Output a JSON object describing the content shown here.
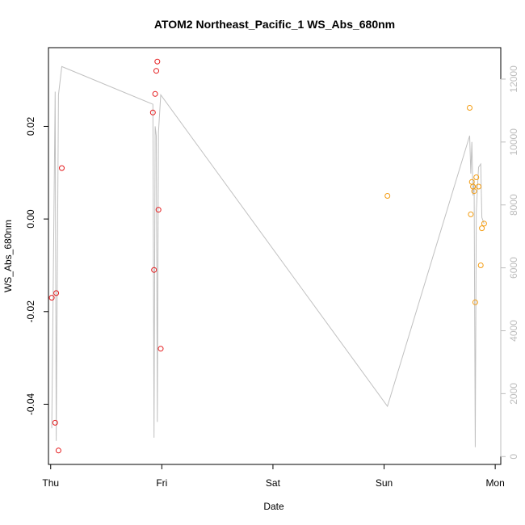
{
  "chart_data": {
    "type": "scatter",
    "title": "ATOM2 Northeast_Pacific_1 WS_Abs_680nm",
    "xlabel": "Date",
    "ylabel": "WS_Abs_680nm",
    "x_ticks": [
      "Thu",
      "Fri",
      "Sat",
      "Sun",
      "Mon"
    ],
    "xlim": [
      -0.02,
      4.05
    ],
    "ylim": [
      -0.053,
      0.037
    ],
    "y_ticks": [
      -0.04,
      -0.02,
      0.0,
      0.02
    ],
    "y_tick_labels": [
      "-0.04",
      "-0.02",
      "0.00",
      "0.02"
    ],
    "y2lim": [
      -250,
      13000
    ],
    "y2_ticks": [
      0,
      2000,
      4000,
      6000,
      8000,
      10000,
      12000
    ],
    "y2_tick_labels": [
      "0",
      "2000",
      "4000",
      "6000",
      "8000",
      "10000",
      "12000"
    ],
    "grid": false,
    "colors": {
      "series_red": "#e41a1c",
      "series_orange": "#f39c12",
      "depth_line": "#c0c0c0",
      "right_axis": "#bdbdbd"
    },
    "series": [
      {
        "color": "#e41a1c",
        "points": [
          [
            0.01,
            -0.017
          ],
          [
            0.04,
            -0.044
          ],
          [
            0.05,
            -0.016
          ],
          [
            0.07,
            -0.05
          ],
          [
            0.1,
            0.011
          ],
          [
            0.92,
            0.023
          ],
          [
            0.93,
            -0.011
          ],
          [
            0.94,
            0.027
          ],
          [
            0.95,
            0.032
          ],
          [
            0.96,
            0.034
          ],
          [
            0.97,
            0.002
          ],
          [
            0.99,
            -0.028
          ]
        ]
      },
      {
        "color": "#f39c12",
        "points": [
          [
            3.03,
            0.005
          ],
          [
            3.77,
            0.024
          ],
          [
            3.78,
            0.001
          ],
          [
            3.79,
            0.008
          ],
          [
            3.8,
            0.007
          ],
          [
            3.81,
            0.006
          ],
          [
            3.82,
            -0.018
          ],
          [
            3.83,
            0.009
          ],
          [
            3.85,
            0.007
          ],
          [
            3.87,
            -0.01
          ],
          [
            3.88,
            -0.002
          ],
          [
            3.9,
            -0.001
          ]
        ]
      }
    ],
    "depth_line": {
      "x": [
        0.01,
        0.04,
        0.05,
        0.07,
        0.1,
        0.92,
        0.93,
        0.94,
        0.95,
        0.96,
        0.97,
        0.99,
        3.03,
        3.77,
        3.78,
        3.79,
        3.8,
        3.81,
        3.82,
        3.83,
        3.85,
        3.87,
        3.88,
        3.9
      ],
      "y": [
        900,
        11600,
        500,
        11500,
        12400,
        11200,
        600,
        10500,
        10200,
        1100,
        10300,
        11500,
        1600,
        10200,
        9000,
        10000,
        8300,
        8800,
        300,
        7800,
        9200,
        9300,
        7600,
        7400
      ]
    }
  }
}
